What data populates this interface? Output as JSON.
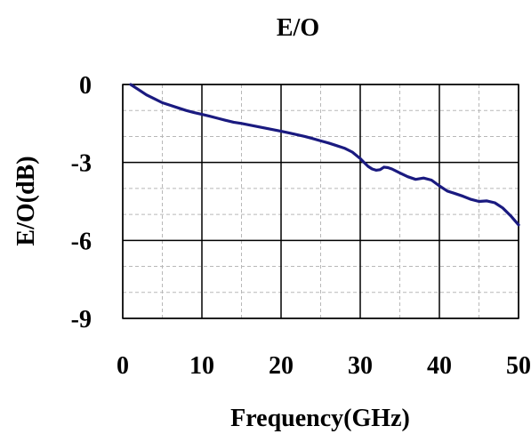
{
  "chart_data": {
    "type": "line",
    "title": "E/O",
    "xlabel": "Frequency(GHz)",
    "ylabel": "E/O(dB)",
    "xlim": [
      0,
      50
    ],
    "ylim": [
      -9,
      0
    ],
    "x_major_ticks": [
      0,
      10,
      20,
      30,
      40,
      50
    ],
    "y_major_ticks": [
      0,
      -3,
      -6,
      -9
    ],
    "x_tick_labels": [
      "0",
      "10",
      "20",
      "30",
      "40",
      "50"
    ],
    "y_tick_labels": [
      "0",
      "-3",
      "-6",
      "-9"
    ],
    "x_minor_ticks": [
      5,
      15,
      25,
      35,
      45
    ],
    "y_minor_ticks": [
      -1,
      -2,
      -4,
      -5,
      -7,
      -8
    ],
    "grid": true,
    "series_color": "#1a1a80",
    "series": [
      {
        "x": [
          1,
          2,
          3,
          4,
          5,
          6,
          7,
          8,
          9,
          10,
          11,
          12,
          13,
          14,
          15,
          16,
          17,
          18,
          19,
          20,
          21,
          22,
          23,
          24,
          25,
          26,
          27,
          28,
          29,
          30,
          30.5,
          31,
          31.5,
          32,
          32.5,
          33,
          33.5,
          34,
          35,
          36,
          37,
          38,
          39,
          40,
          41,
          42,
          43,
          44,
          45,
          46,
          47,
          48,
          49,
          50
        ],
        "y": [
          0.0,
          -0.2,
          -0.4,
          -0.55,
          -0.7,
          -0.8,
          -0.9,
          -1.0,
          -1.08,
          -1.15,
          -1.22,
          -1.3,
          -1.38,
          -1.45,
          -1.5,
          -1.56,
          -1.62,
          -1.68,
          -1.74,
          -1.8,
          -1.86,
          -1.93,
          -2.0,
          -2.08,
          -2.17,
          -2.25,
          -2.35,
          -2.45,
          -2.6,
          -2.85,
          -3.0,
          -3.15,
          -3.25,
          -3.3,
          -3.28,
          -3.18,
          -3.2,
          -3.25,
          -3.4,
          -3.55,
          -3.65,
          -3.6,
          -3.68,
          -3.9,
          -4.1,
          -4.2,
          -4.3,
          -4.42,
          -4.5,
          -4.48,
          -4.55,
          -4.75,
          -5.05,
          -5.4
        ]
      }
    ]
  }
}
